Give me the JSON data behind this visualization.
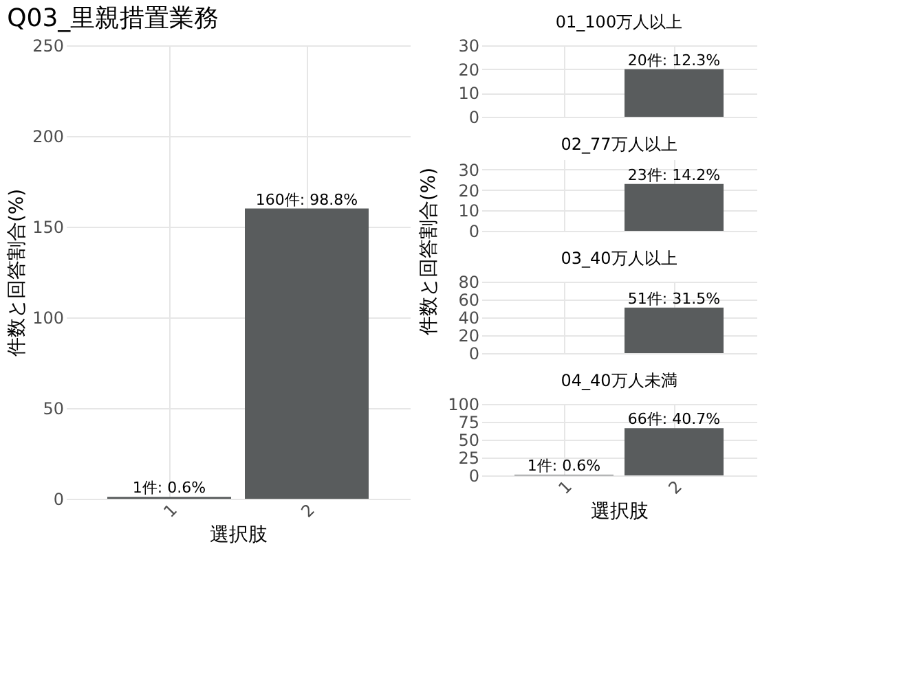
{
  "chart_data": [
    {
      "type": "bar",
      "title": "Q03_里親措置業務",
      "xlabel": "選択肢",
      "ylabel": "件数と回答割合(%)",
      "categories": [
        "1",
        "2"
      ],
      "values": [
        1,
        160
      ],
      "value_labels": [
        "1件: 0.6%",
        "160件: 98.8%"
      ],
      "color": "#595c5d",
      "ylim": [
        0,
        250
      ],
      "yticks": [
        0,
        50,
        100,
        150,
        200,
        250
      ],
      "grid": true
    },
    {
      "type": "bar",
      "title": "01_100万人以上",
      "categories": [
        "1",
        "2"
      ],
      "values": [
        null,
        20
      ],
      "value_labels": [
        null,
        "20件: 12.3%"
      ],
      "color": "#595c5d",
      "ylim": [
        0,
        30
      ],
      "yticks": [
        0,
        10,
        20,
        30
      ],
      "grid": true,
      "tick_labels": "y"
    },
    {
      "type": "bar",
      "title": "02_77万人以上",
      "categories": [
        "1",
        "2"
      ],
      "values": [
        null,
        23
      ],
      "value_labels": [
        null,
        "23件: 14.2%"
      ],
      "color": "#595c5d",
      "ylim": [
        0,
        35
      ],
      "yticks": [
        0,
        10,
        20,
        30
      ],
      "grid": true,
      "tick_labels": "y"
    },
    {
      "type": "bar",
      "title": "03_40万人以上",
      "ylabel": "件数と回答割合(%)",
      "categories": [
        "1",
        "2"
      ],
      "values": [
        null,
        51
      ],
      "value_labels": [
        null,
        "51件: 31.5%"
      ],
      "color": "#595c5d",
      "ylim": [
        0,
        80
      ],
      "yticks": [
        0,
        20,
        40,
        60,
        80
      ],
      "grid": true,
      "tick_labels": "y"
    },
    {
      "type": "bar",
      "title": "04_40万人未満",
      "xlabel": "選択肢",
      "categories": [
        "1",
        "2"
      ],
      "values": [
        1,
        66
      ],
      "value_labels": [
        "1件: 0.6%",
        "66件: 40.7%"
      ],
      "color": "#595c5d",
      "ylim": [
        0,
        100
      ],
      "yticks": [
        0,
        25,
        50,
        75,
        100
      ],
      "grid": true
    }
  ]
}
